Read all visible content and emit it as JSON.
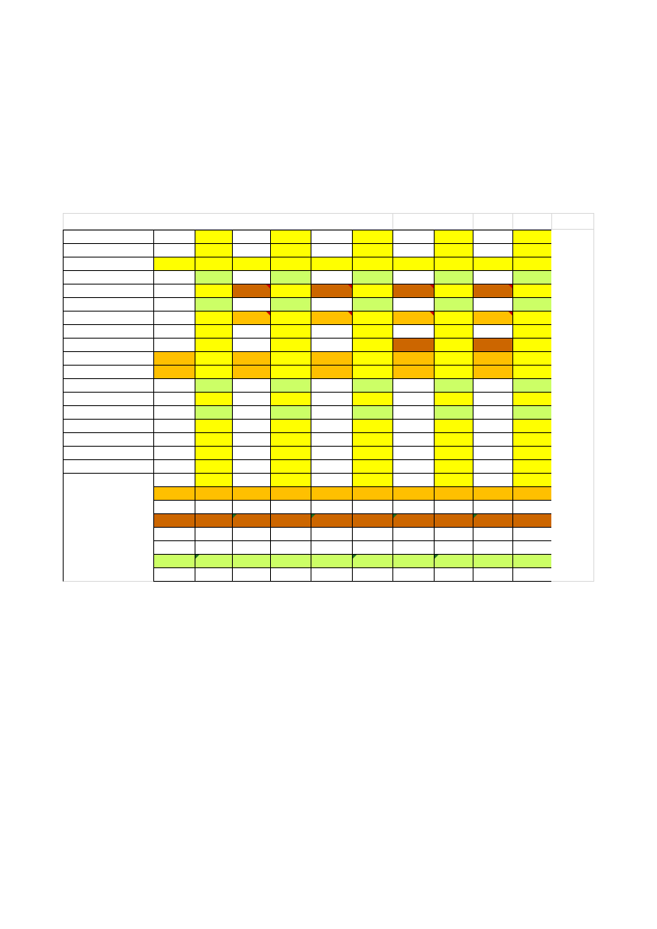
{
  "colors": {
    "white": "#ffffff",
    "yellow": "#ffff00",
    "lime": "#ccff66",
    "brown": "#cc6600",
    "orange": "#ffc000",
    "gridline": "#d9d9d9",
    "border": "#000000",
    "comment_marker": "#cc0000",
    "green_marker": "#1f6f1f"
  },
  "sheet": {
    "rows": [
      [
        "W",
        "W",
        "Y",
        "W",
        "Y",
        "W",
        "Y",
        "W",
        "Y",
        "W",
        "Y"
      ],
      [
        "W",
        "W",
        "Y",
        "W",
        "Y",
        "W",
        "Y",
        "W",
        "Y",
        "W",
        "Y"
      ],
      [
        "W",
        "Y",
        "Y",
        "Y",
        "Y",
        "Y",
        "Y",
        "Y",
        "Y",
        "Y",
        "Y"
      ],
      [
        "W",
        "W",
        "L",
        "W",
        "L",
        "W",
        "L",
        "W",
        "L",
        "W",
        "L"
      ],
      [
        "W",
        "W",
        "Y",
        "B",
        "Y",
        "B",
        "Y",
        "B",
        "Y",
        "B",
        "Y"
      ],
      [
        "W",
        "W",
        "L",
        "W",
        "L",
        "W",
        "L",
        "W",
        "L",
        "W",
        "L"
      ],
      [
        "W",
        "W",
        "Y",
        "O",
        "Y",
        "O",
        "Y",
        "O",
        "Y",
        "O",
        "Y"
      ],
      [
        "W",
        "W",
        "Y",
        "W",
        "Y",
        "W",
        "Y",
        "W",
        "Y",
        "W",
        "Y"
      ],
      [
        "W",
        "W",
        "Y",
        "W",
        "Y",
        "W",
        "Y",
        "B",
        "Y",
        "B",
        "Y"
      ],
      [
        "W",
        "O",
        "Y",
        "O",
        "Y",
        "O",
        "Y",
        "O",
        "Y",
        "O",
        "Y"
      ],
      [
        "W",
        "O",
        "Y",
        "O",
        "Y",
        "O",
        "Y",
        "O",
        "Y",
        "O",
        "Y"
      ],
      [
        "W",
        "W",
        "L",
        "W",
        "L",
        "W",
        "L",
        "W",
        "L",
        "W",
        "L"
      ],
      [
        "W",
        "W",
        "Y",
        "W",
        "Y",
        "W",
        "Y",
        "W",
        "Y",
        "W",
        "Y"
      ],
      [
        "W",
        "W",
        "L",
        "W",
        "L",
        "W",
        "L",
        "W",
        "L",
        "W",
        "L"
      ],
      [
        "W",
        "W",
        "Y",
        "W",
        "Y",
        "W",
        "Y",
        "W",
        "Y",
        "W",
        "Y"
      ],
      [
        "W",
        "W",
        "Y",
        "W",
        "Y",
        "W",
        "Y",
        "W",
        "Y",
        "W",
        "Y"
      ],
      [
        "W",
        "W",
        "Y",
        "W",
        "Y",
        "W",
        "Y",
        "W",
        "Y",
        "W",
        "Y"
      ],
      [
        "W",
        "W",
        "Y",
        "W",
        "Y",
        "W",
        "Y",
        "W",
        "Y",
        "W",
        "Y"
      ],
      [
        "W",
        "W",
        "Y",
        "W",
        "Y",
        "W",
        "Y",
        "W",
        "Y",
        "W",
        "Y"
      ],
      [
        "-",
        "O",
        "O",
        "O",
        "O",
        "O",
        "O",
        "O",
        "O",
        "O",
        "O"
      ],
      [
        "-",
        "W",
        "W",
        "W",
        "W",
        "W",
        "W",
        "W",
        "W",
        "W",
        "W"
      ],
      [
        "-",
        "B",
        "B",
        "B",
        "B",
        "B",
        "B",
        "B",
        "B",
        "B",
        "B"
      ],
      [
        "-",
        "W",
        "W",
        "W",
        "W",
        "W",
        "W",
        "W",
        "W",
        "W",
        "W"
      ],
      [
        "-",
        "W",
        "W",
        "W",
        "W",
        "W",
        "W",
        "W",
        "W",
        "W",
        "W"
      ],
      [
        "-",
        "L",
        "L",
        "L",
        "L",
        "L",
        "L",
        "L",
        "L",
        "L",
        "L"
      ],
      [
        "-",
        "W",
        "W",
        "W",
        "W",
        "W",
        "W",
        "W",
        "W",
        "W",
        "W"
      ]
    ]
  }
}
